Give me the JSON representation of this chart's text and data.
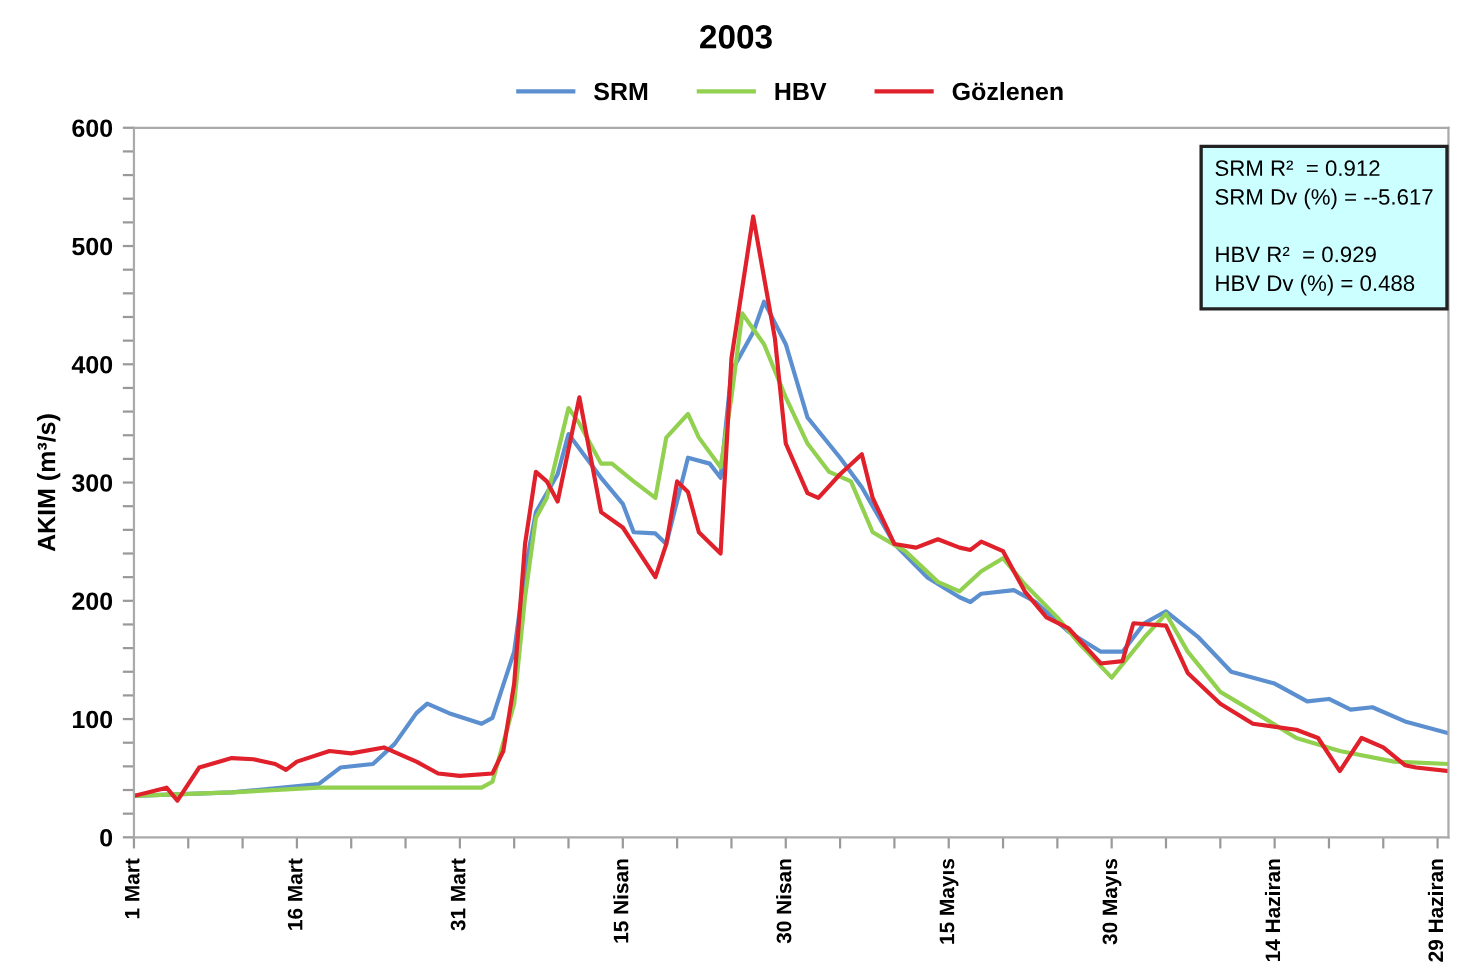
{
  "chart_data": {
    "type": "line",
    "title": "2003",
    "ylabel": "AKIM (m³/s)",
    "xlim": [
      "2003-03-01",
      "2003-06-30"
    ],
    "ylim": [
      0,
      600
    ],
    "xticks": [
      {
        "value": "2003-03-01",
        "label": "1 Mart"
      },
      {
        "value": "2003-03-06",
        "label": null
      },
      {
        "value": "2003-03-11",
        "label": null
      },
      {
        "value": "2003-03-16",
        "label": "16 Mart"
      },
      {
        "value": "2003-03-21",
        "label": null
      },
      {
        "value": "2003-03-26",
        "label": null
      },
      {
        "value": "2003-03-31",
        "label": "31 Mart"
      },
      {
        "value": "2003-04-05",
        "label": null
      },
      {
        "value": "2003-04-10",
        "label": null
      },
      {
        "value": "2003-04-15",
        "label": "15 Nisan"
      },
      {
        "value": "2003-04-20",
        "label": null
      },
      {
        "value": "2003-04-25",
        "label": null
      },
      {
        "value": "2003-04-30",
        "label": "30 Nisan"
      },
      {
        "value": "2003-05-05",
        "label": null
      },
      {
        "value": "2003-05-10",
        "label": null
      },
      {
        "value": "2003-05-15",
        "label": "15 Mayıs"
      },
      {
        "value": "2003-05-20",
        "label": null
      },
      {
        "value": "2003-05-25",
        "label": null
      },
      {
        "value": "2003-05-30",
        "label": "30 Mayıs"
      },
      {
        "value": "2003-06-04",
        "label": null
      },
      {
        "value": "2003-06-09",
        "label": null
      },
      {
        "value": "2003-06-14",
        "label": "14 Haziran"
      },
      {
        "value": "2003-06-19",
        "label": null
      },
      {
        "value": "2003-06-24",
        "label": null
      },
      {
        "value": "2003-06-29",
        "label": "29 Haziran"
      }
    ],
    "yticks": [
      0,
      {
        "value": 20,
        "label": null
      },
      {
        "value": 40,
        "label": null
      },
      {
        "value": 60,
        "label": null
      },
      {
        "value": 80,
        "label": null
      },
      100,
      {
        "value": 120,
        "label": null
      },
      {
        "value": 140,
        "label": null
      },
      {
        "value": 160,
        "label": null
      },
      {
        "value": 180,
        "label": null
      },
      200,
      {
        "value": 220,
        "label": null
      },
      {
        "value": 240,
        "label": null
      },
      {
        "value": 260,
        "label": null
      },
      {
        "value": 280,
        "label": null
      },
      300,
      {
        "value": 320,
        "label": null
      },
      {
        "value": 340,
        "label": null
      },
      {
        "value": 360,
        "label": null
      },
      {
        "value": 380,
        "label": null
      },
      400,
      {
        "value": 420,
        "label": null
      },
      {
        "value": 440,
        "label": null
      },
      {
        "value": 460,
        "label": null
      },
      {
        "value": 480,
        "label": null
      },
      500,
      {
        "value": 520,
        "label": null
      },
      {
        "value": 540,
        "label": null
      },
      {
        "value": 560,
        "label": null
      },
      {
        "value": 580,
        "label": null
      },
      600
    ],
    "grid": false,
    "legend": "top",
    "marker": "none",
    "line_style": "solid",
    "annotations": [
      "SRM R²  = 0.912\nSRM Dv (%) = --5.617",
      "HBV R²  = 0.929\nHBV Dv (%) = 0.488"
    ],
    "series": [
      {
        "name": "SRM",
        "color": "#5b8fd0",
        "x": [
          "2003-03-01",
          "2003-03-10",
          "2003-03-18",
          "2003-03-20",
          "2003-03-23",
          "2003-03-25",
          "2003-03-27",
          "2003-03-28",
          "2003-03-30",
          "2003-04-02",
          "2003-04-03",
          "2003-04-05",
          "2003-04-06",
          "2003-04-07",
          "2003-04-09",
          "2003-04-10",
          "2003-04-13",
          "2003-04-15",
          "2003-04-16",
          "2003-04-18",
          "2003-04-19",
          "2003-04-21",
          "2003-04-23",
          "2003-04-24",
          "2003-04-25",
          "2003-04-27",
          "2003-04-28",
          "2003-04-30",
          "2003-05-02",
          "2003-05-05",
          "2003-05-07",
          "2003-05-10",
          "2003-05-13",
          "2003-05-16",
          "2003-05-17",
          "2003-05-18",
          "2003-05-21",
          "2003-05-23",
          "2003-05-26",
          "2003-05-29",
          "2003-05-31",
          "2003-06-02",
          "2003-06-04",
          "2003-06-07",
          "2003-06-10",
          "2003-06-14",
          "2003-06-17",
          "2003-06-19",
          "2003-06-21",
          "2003-06-23",
          "2003-06-26",
          "2003-06-30"
        ],
        "values": [
          35,
          38,
          45,
          59,
          62,
          79,
          105,
          113,
          105,
          96,
          101,
          157,
          225,
          275,
          307,
          341,
          304,
          282,
          258,
          257,
          248,
          321,
          316,
          304,
          394,
          427,
          453,
          417,
          355,
          321,
          296,
          248,
          220,
          203,
          199,
          206,
          209,
          199,
          174,
          157,
          157,
          181,
          191,
          169,
          140,
          130,
          115,
          117,
          108,
          110,
          98,
          88
        ]
      },
      {
        "name": "HBV",
        "color": "#92d050",
        "x": [
          "2003-03-01",
          "2003-03-10",
          "2003-03-18",
          "2003-04-02",
          "2003-04-03",
          "2003-04-05",
          "2003-04-06",
          "2003-04-07",
          "2003-04-08",
          "2003-04-10",
          "2003-04-11",
          "2003-04-13",
          "2003-04-14",
          "2003-04-16",
          "2003-04-18",
          "2003-04-19",
          "2003-04-21",
          "2003-04-22",
          "2003-04-24",
          "2003-04-25",
          "2003-04-26",
          "2003-04-28",
          "2003-04-30",
          "2003-05-02",
          "2003-05-04",
          "2003-05-06",
          "2003-05-08",
          "2003-05-11",
          "2003-05-14",
          "2003-05-16",
          "2003-05-18",
          "2003-05-20",
          "2003-05-22",
          "2003-05-25",
          "2003-05-27",
          "2003-05-30",
          "2003-06-02",
          "2003-06-04",
          "2003-06-06",
          "2003-06-09",
          "2003-06-13",
          "2003-06-16",
          "2003-06-20",
          "2003-06-25",
          "2003-06-30"
        ],
        "values": [
          35,
          38,
          42,
          42,
          47,
          113,
          203,
          270,
          287,
          363,
          350,
          316,
          316,
          301,
          287,
          338,
          358,
          338,
          313,
          372,
          443,
          417,
          372,
          333,
          309,
          301,
          258,
          242,
          216,
          208,
          225,
          236,
          214,
          186,
          164,
          135,
          169,
          189,
          157,
          123,
          101,
          84,
          73,
          64,
          62
        ]
      },
      {
        "name": "Gözlenen",
        "color": "#e0202a",
        "x": [
          "2003-03-01",
          "2003-03-04",
          "2003-03-05",
          "2003-03-07",
          "2003-03-10",
          "2003-03-12",
          "2003-03-14",
          "2003-03-15",
          "2003-03-16",
          "2003-03-19",
          "2003-03-21",
          "2003-03-24",
          "2003-03-27",
          "2003-03-29",
          "2003-03-31",
          "2003-04-03",
          "2003-04-04",
          "2003-04-05",
          "2003-04-06",
          "2003-04-07",
          "2003-04-08",
          "2003-04-09",
          "2003-04-11",
          "2003-04-13",
          "2003-04-15",
          "2003-04-16",
          "2003-04-18",
          "2003-04-19",
          "2003-04-20",
          "2003-04-21",
          "2003-04-22",
          "2003-04-24",
          "2003-04-25",
          "2003-04-27",
          "2003-04-29",
          "2003-04-30",
          "2003-05-02",
          "2003-05-03",
          "2003-05-05",
          "2003-05-07",
          "2003-05-08",
          "2003-05-10",
          "2003-05-12",
          "2003-05-14",
          "2003-05-16",
          "2003-05-17",
          "2003-05-18",
          "2003-05-20",
          "2003-05-22",
          "2003-05-24",
          "2003-05-26",
          "2003-05-28",
          "2003-05-29",
          "2003-05-31",
          "2003-06-01",
          "2003-06-04",
          "2003-06-06",
          "2003-06-09",
          "2003-06-12",
          "2003-06-16",
          "2003-06-18",
          "2003-06-20",
          "2003-06-22",
          "2003-06-24",
          "2003-06-26",
          "2003-06-27",
          "2003-06-30"
        ],
        "values": [
          35,
          42,
          31,
          59,
          67,
          66,
          62,
          57,
          64,
          73,
          71,
          76,
          64,
          54,
          52,
          54,
          73,
          130,
          248,
          309,
          301,
          284,
          372,
          275,
          262,
          248,
          220,
          248,
          301,
          292,
          258,
          240,
          405,
          525,
          422,
          333,
          291,
          287,
          307,
          324,
          287,
          248,
          245,
          252,
          245,
          243,
          250,
          242,
          208,
          186,
          177,
          157,
          147,
          149,
          181,
          179,
          139,
          113,
          96,
          91,
          84,
          56,
          84,
          76,
          61,
          59,
          56
        ]
      }
    ]
  }
}
